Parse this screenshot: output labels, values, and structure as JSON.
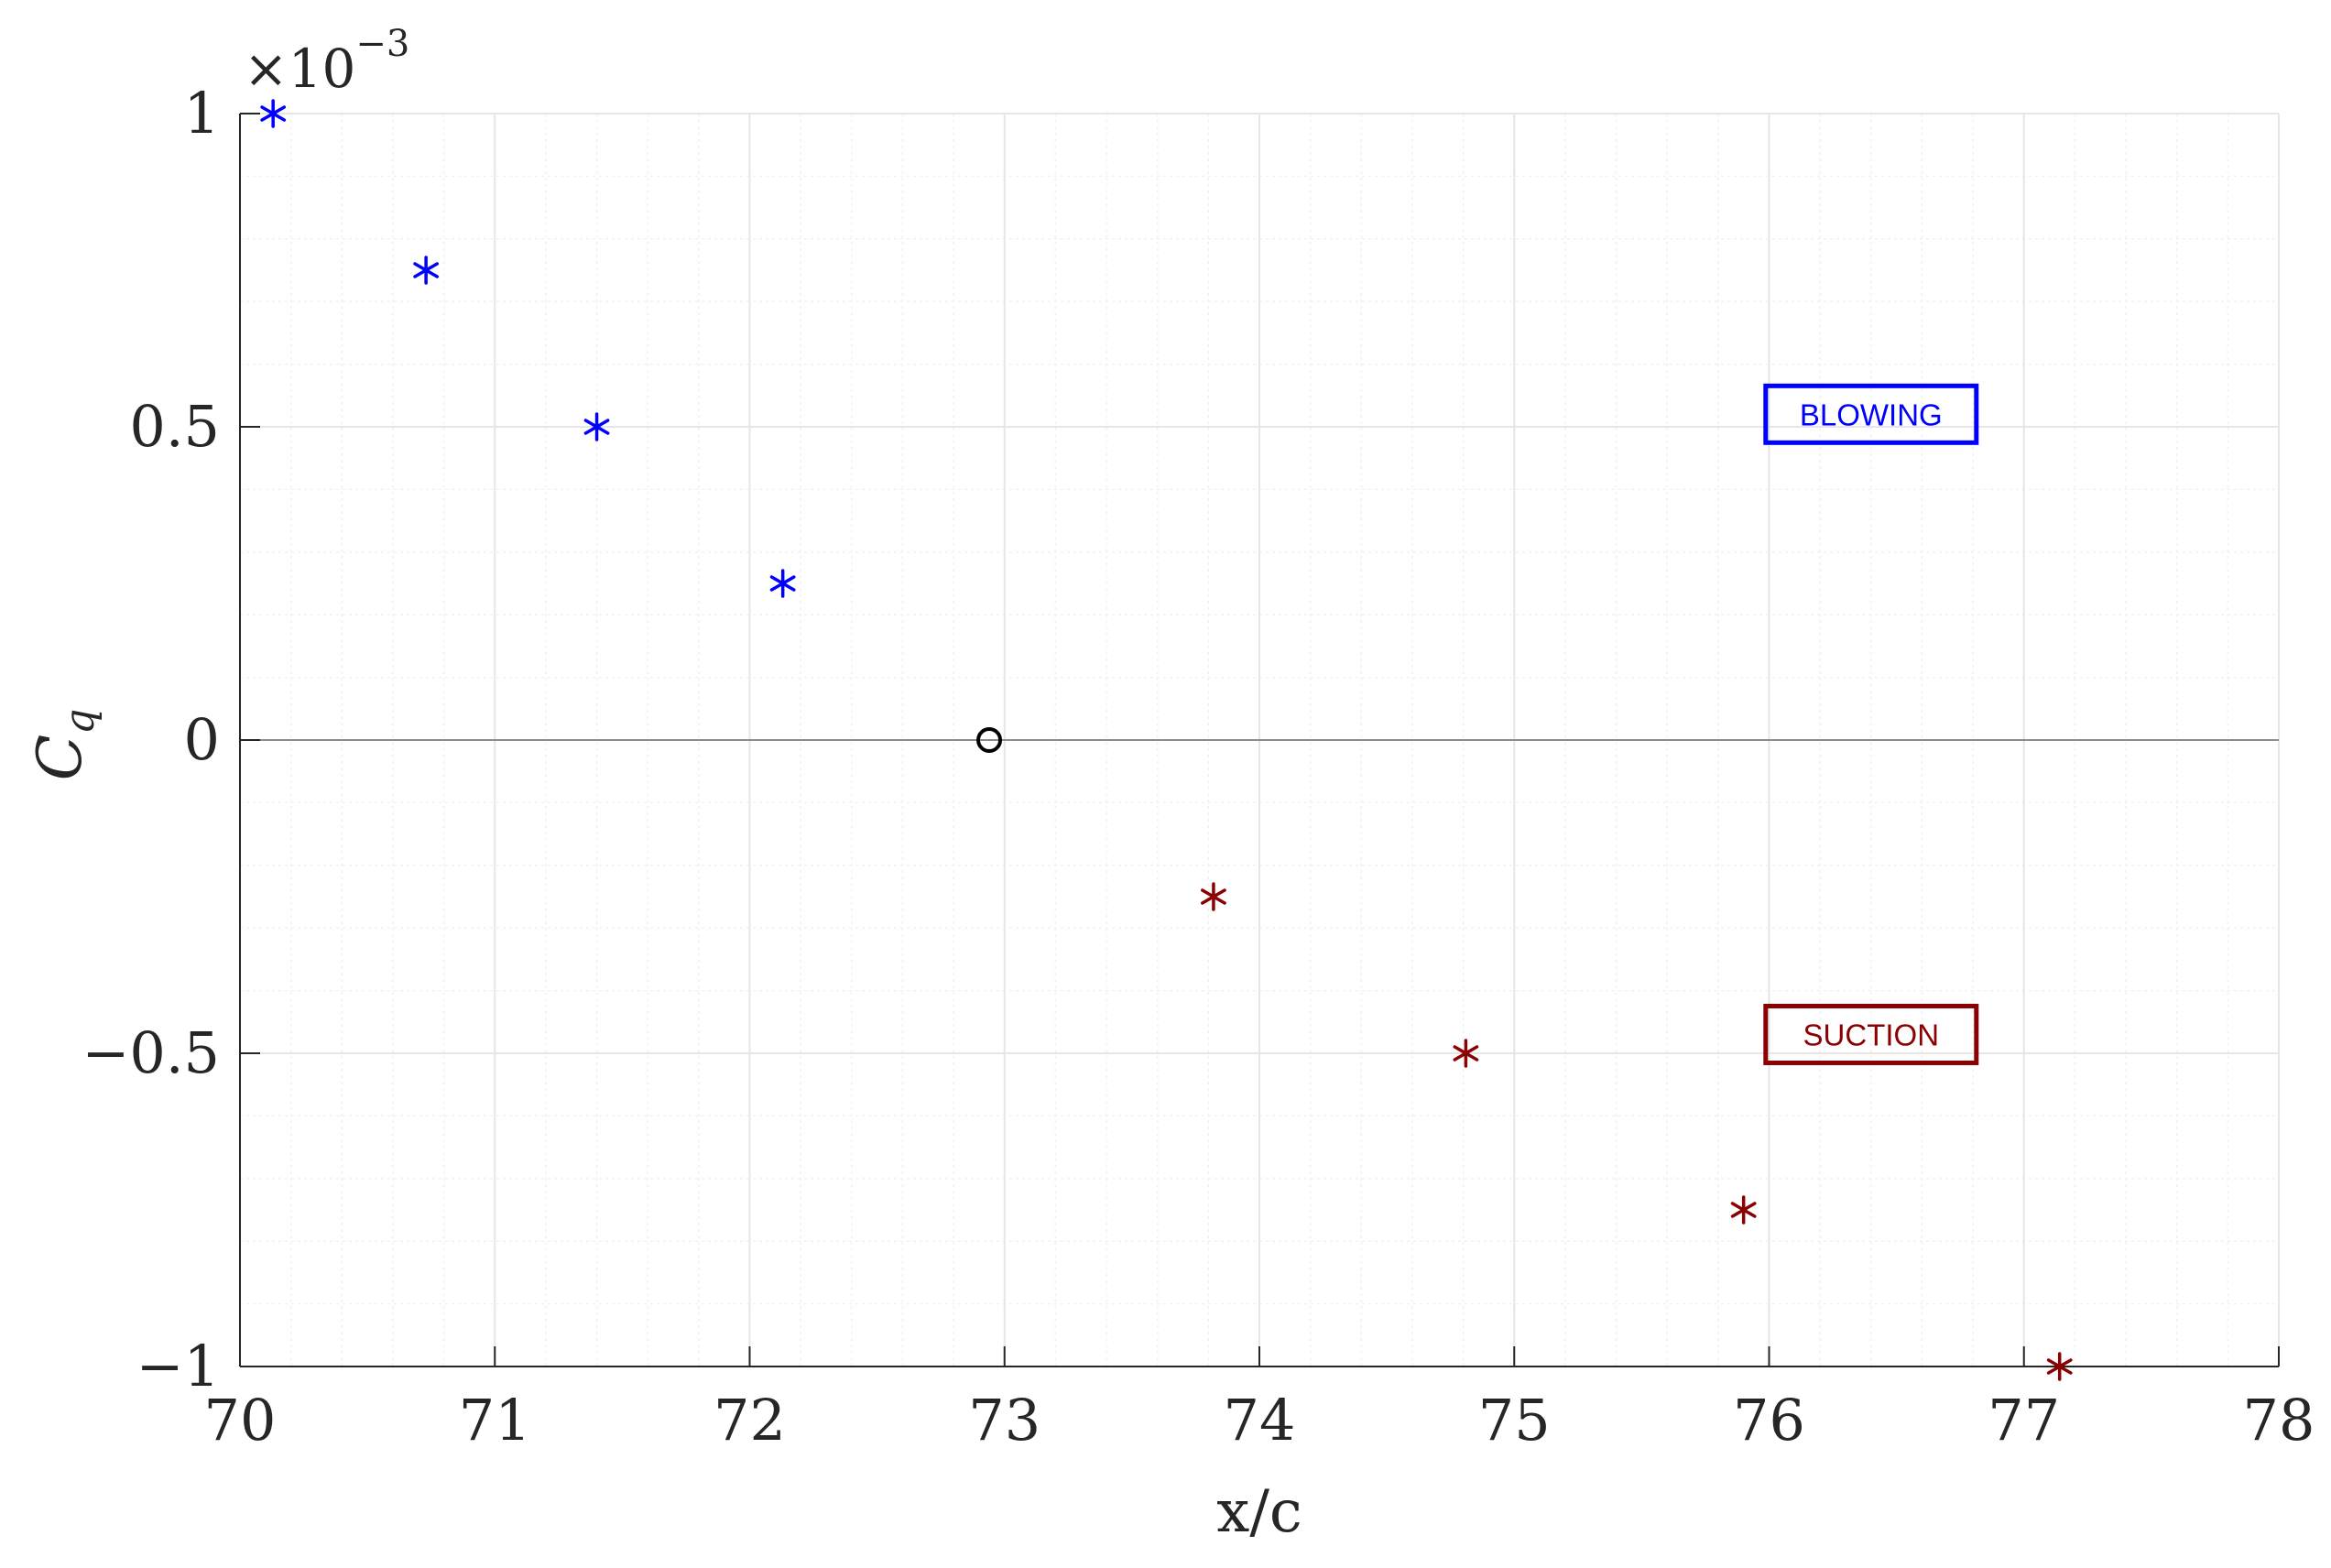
{
  "chart_data": {
    "type": "scatter",
    "xlabel": "x/c",
    "ylabel": {
      "main": "C",
      "sub": "q"
    },
    "exponent": {
      "prefix": "×10",
      "power": "−3"
    },
    "xlim": [
      70,
      78
    ],
    "ylim": [
      -1,
      1
    ],
    "xticks": [
      70,
      71,
      72,
      73,
      74,
      75,
      76,
      77,
      78
    ],
    "xtick_labels": [
      "70",
      "71",
      "72",
      "73",
      "74",
      "75",
      "76",
      "77",
      "78"
    ],
    "yticks": [
      1,
      0.5,
      0,
      -0.5,
      -1
    ],
    "ytick_labels": [
      "1",
      "0.5",
      "0",
      "−0.5",
      "−1"
    ],
    "grid": true,
    "minor_grid": true,
    "zero_line": true,
    "series": [
      {
        "marker": "asterisk",
        "color": "#0000FF",
        "x": [
          70.13,
          70.73,
          71.4,
          72.13
        ],
        "y": [
          1.0,
          0.75,
          0.5,
          0.25
        ]
      },
      {
        "marker": "circle",
        "color": "#000000",
        "x": [
          72.94
        ],
        "y": [
          0
        ]
      },
      {
        "marker": "asterisk",
        "color": "#8B0000",
        "x": [
          73.82,
          74.81,
          75.9,
          77.14
        ],
        "y": [
          -0.25,
          -0.5,
          -0.75,
          -1.0
        ]
      }
    ],
    "annotations": [
      {
        "text": "BLOWING",
        "color": "#0000FF",
        "x": 76.4,
        "y": 0.52
      },
      {
        "text": "SUCTION",
        "color": "#8B0000",
        "x": 76.4,
        "y": -0.47
      }
    ]
  }
}
